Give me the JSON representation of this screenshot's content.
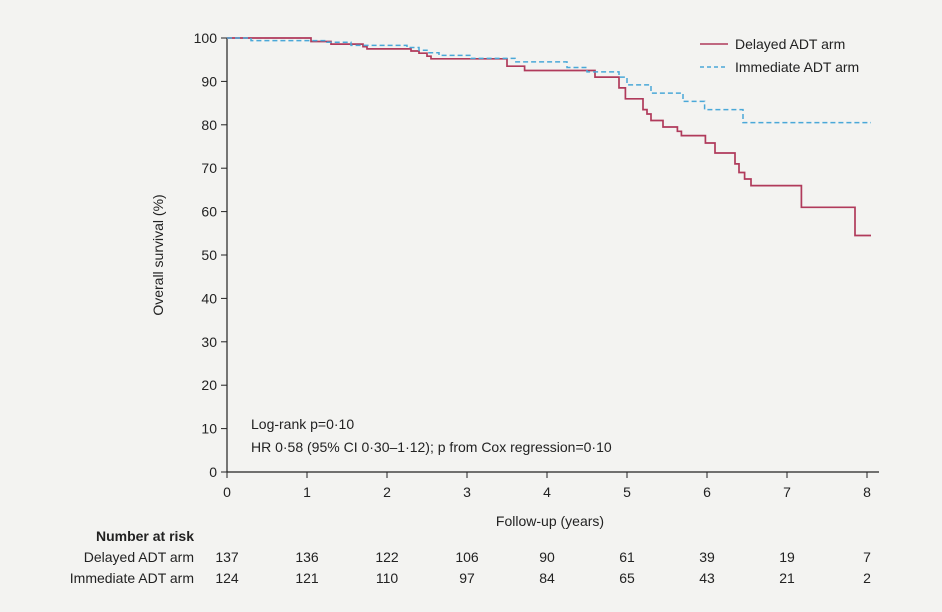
{
  "chart_data": {
    "type": "line",
    "subtype": "kaplan-meier step curve",
    "xlabel": "Follow-up (years)",
    "ylabel": "Overall survival (%)",
    "xlim": [
      0,
      8
    ],
    "ylim": [
      0,
      100
    ],
    "x_ticks": [
      "0",
      "1",
      "2",
      "3",
      "4",
      "5",
      "6",
      "7",
      "8"
    ],
    "y_ticks": [
      "0",
      "10",
      "20",
      "30",
      "40",
      "50",
      "60",
      "70",
      "80",
      "90",
      "100"
    ],
    "grid": false,
    "legend_position": "top-right",
    "series": [
      {
        "name": "Delayed ADT arm",
        "color": "#b03a5b",
        "style": "solid",
        "points": [
          [
            0,
            100
          ],
          [
            1.05,
            99.2
          ],
          [
            1.3,
            98.6
          ],
          [
            1.7,
            98.0
          ],
          [
            1.75,
            97.5
          ],
          [
            2.3,
            97.0
          ],
          [
            2.4,
            96.5
          ],
          [
            2.5,
            95.8
          ],
          [
            2.55,
            95.2
          ],
          [
            3.0,
            95.2
          ],
          [
            3.5,
            93.5
          ],
          [
            3.72,
            92.5
          ],
          [
            4.6,
            91.0
          ],
          [
            4.9,
            88.5
          ],
          [
            4.98,
            86.0
          ],
          [
            5.2,
            83.5
          ],
          [
            5.25,
            82.5
          ],
          [
            5.3,
            81.0
          ],
          [
            5.45,
            79.5
          ],
          [
            5.63,
            78.5
          ],
          [
            5.68,
            77.5
          ],
          [
            5.98,
            75.8
          ],
          [
            6.1,
            73.5
          ],
          [
            6.35,
            71.0
          ],
          [
            6.4,
            69.0
          ],
          [
            6.47,
            67.5
          ],
          [
            6.55,
            66.0
          ],
          [
            7.18,
            61.0
          ],
          [
            7.85,
            54.5
          ],
          [
            8.05,
            54.5
          ]
        ]
      },
      {
        "name": "Immediate ADT arm",
        "color": "#4aa8d8",
        "style": "dashed",
        "points": [
          [
            0,
            100
          ],
          [
            0.3,
            99.4
          ],
          [
            1.25,
            99.0
          ],
          [
            1.55,
            98.3
          ],
          [
            2.25,
            97.8
          ],
          [
            2.4,
            97.2
          ],
          [
            2.5,
            96.6
          ],
          [
            2.65,
            96.0
          ],
          [
            3.05,
            95.3
          ],
          [
            3.6,
            94.5
          ],
          [
            4.25,
            93.2
          ],
          [
            4.5,
            92.2
          ],
          [
            4.9,
            91.0
          ],
          [
            5.0,
            89.2
          ],
          [
            5.3,
            87.3
          ],
          [
            5.7,
            85.4
          ],
          [
            5.97,
            83.5
          ],
          [
            6.45,
            80.5
          ],
          [
            8.05,
            80.5
          ]
        ]
      }
    ],
    "annotations": [
      "Log-rank p=0·10",
      "HR 0·58 (95% CI 0·30–1·12); p from Cox regression=0·10"
    ],
    "risk_table": {
      "title": "Number at risk",
      "times": [
        0,
        1,
        2,
        3,
        4,
        5,
        6,
        7,
        8
      ],
      "rows": [
        {
          "label": "Delayed ADT arm",
          "counts": [
            "137",
            "136",
            "122",
            "106",
            "90",
            "61",
            "39",
            "19",
            "7"
          ]
        },
        {
          "label": "Immediate ADT arm",
          "counts": [
            "124",
            "121",
            "110",
            "97",
            "84",
            "65",
            "43",
            "21",
            "2"
          ]
        }
      ]
    }
  }
}
